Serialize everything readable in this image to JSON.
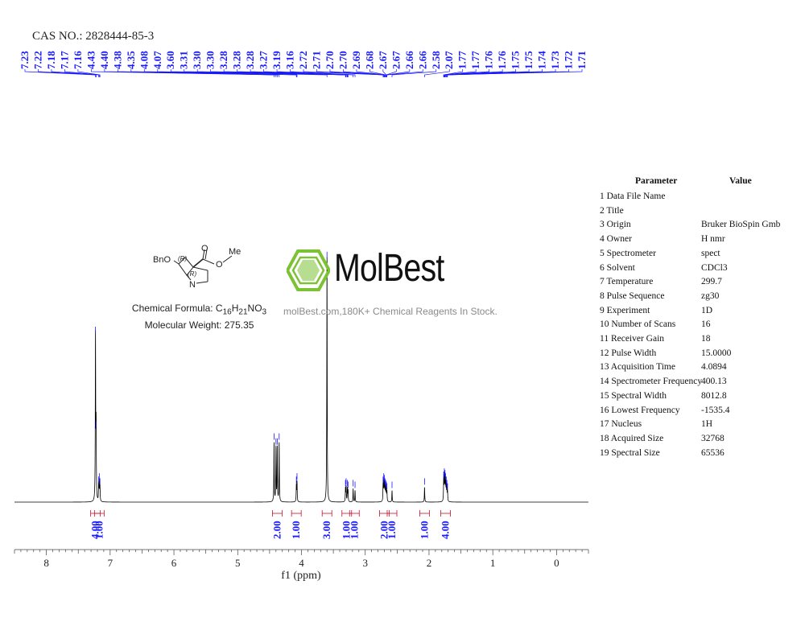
{
  "cas_label": "CAS NO.: 2828444-85-3",
  "peak_labels": [
    "7.23",
    "7.22",
    "7.18",
    "7.17",
    "7.16",
    "4.43",
    "4.40",
    "4.38",
    "4.35",
    "4.08",
    "4.07",
    "3.60",
    "3.31",
    "3.30",
    "3.30",
    "3.28",
    "3.28",
    "3.28",
    "3.27",
    "3.19",
    "3.16",
    "2.72",
    "2.71",
    "2.70",
    "2.70",
    "2.69",
    "2.68",
    "2.67",
    "2.67",
    "2.66",
    "2.66",
    "2.58",
    "2.07",
    "1.77",
    "1.77",
    "1.76",
    "1.76",
    "1.75",
    "1.75",
    "1.74",
    "1.73",
    "1.72",
    "1.71"
  ],
  "molecule": {
    "substituent_label": "BnO",
    "stereo_label_1": "(R)",
    "stereo_label_2": "(R)",
    "carbonyl_o": "O",
    "ester_o": "O",
    "methyl": "Me",
    "nitrogen": "N",
    "formula_prefix": "Chemical Formula: C",
    "formula_c_sub": "16",
    "formula_h": "H",
    "formula_h_sub": "21",
    "formula_rest": "NO",
    "formula_o_sub": "3",
    "weight_text": "Molecular Weight: 275.35"
  },
  "watermark": {
    "brand": "MolBest",
    "tagline": "molBest.com,180K+ Chemical Reagents In Stock."
  },
  "parameters": {
    "header_param": "Parameter",
    "header_value": "Value",
    "rows": [
      {
        "n": "1",
        "name": "Data File Name",
        "value": ""
      },
      {
        "n": "2",
        "name": "Title",
        "value": ""
      },
      {
        "n": "3",
        "name": "Origin",
        "value": "Bruker BioSpin Gmb"
      },
      {
        "n": "4",
        "name": "Owner",
        "value": "H nmr"
      },
      {
        "n": "5",
        "name": "Spectrometer",
        "value": "spect"
      },
      {
        "n": "6",
        "name": "Solvent",
        "value": "CDCl3"
      },
      {
        "n": "7",
        "name": "Temperature",
        "value": "299.7"
      },
      {
        "n": "8",
        "name": "Pulse Sequence",
        "value": "zg30"
      },
      {
        "n": "9",
        "name": "Experiment",
        "value": "1D"
      },
      {
        "n": "10",
        "name": "Number of Scans",
        "value": "16"
      },
      {
        "n": "11",
        "name": "Receiver Gain",
        "value": "18"
      },
      {
        "n": "12",
        "name": "Pulse Width",
        "value": "15.0000"
      },
      {
        "n": "13",
        "name": "Acquisition Time",
        "value": "4.0894"
      },
      {
        "n": "14",
        "name": "Spectrometer Frequency",
        "value": "400.13"
      },
      {
        "n": "15",
        "name": "Spectral Width",
        "value": "8012.8"
      },
      {
        "n": "16",
        "name": "Lowest Frequency",
        "value": "-1535.4"
      },
      {
        "n": "17",
        "name": "Nucleus",
        "value": "1H"
      },
      {
        "n": "18",
        "name": "Acquired Size",
        "value": "32768"
      },
      {
        "n": "19",
        "name": "Spectral Size",
        "value": "65536"
      }
    ]
  },
  "chart_data": {
    "type": "line",
    "xlabel": "f1 (ppm)",
    "xlim": [
      8.5,
      -0.5
    ],
    "x_reversed": true,
    "xticks": [
      8,
      7,
      6,
      5,
      4,
      3,
      2,
      1,
      0
    ],
    "peaks": [
      {
        "ppm": 7.23,
        "height": 1.0
      },
      {
        "ppm": 7.22,
        "height": 0.43
      },
      {
        "ppm": 7.18,
        "height": 0.1
      },
      {
        "ppm": 7.17,
        "height": 0.12
      },
      {
        "ppm": 7.16,
        "height": 0.09
      },
      {
        "ppm": 4.43,
        "height": 0.36
      },
      {
        "ppm": 4.4,
        "height": 0.33
      },
      {
        "ppm": 4.38,
        "height": 0.33
      },
      {
        "ppm": 4.35,
        "height": 0.36
      },
      {
        "ppm": 4.08,
        "height": 0.1
      },
      {
        "ppm": 4.07,
        "height": 0.12
      },
      {
        "ppm": 3.6,
        "height": 1.5
      },
      {
        "ppm": 3.31,
        "height": 0.08
      },
      {
        "ppm": 3.3,
        "height": 0.09
      },
      {
        "ppm": 3.28,
        "height": 0.08
      },
      {
        "ppm": 3.27,
        "height": 0.07
      },
      {
        "ppm": 3.19,
        "height": 0.08
      },
      {
        "ppm": 3.16,
        "height": 0.07
      },
      {
        "ppm": 2.72,
        "height": 0.1
      },
      {
        "ppm": 2.71,
        "height": 0.12
      },
      {
        "ppm": 2.7,
        "height": 0.11
      },
      {
        "ppm": 2.69,
        "height": 0.09
      },
      {
        "ppm": 2.68,
        "height": 0.08
      },
      {
        "ppm": 2.67,
        "height": 0.07
      },
      {
        "ppm": 2.66,
        "height": 0.06
      },
      {
        "ppm": 2.58,
        "height": 0.07
      },
      {
        "ppm": 2.07,
        "height": 0.09
      },
      {
        "ppm": 1.77,
        "height": 0.13
      },
      {
        "ppm": 1.76,
        "height": 0.15
      },
      {
        "ppm": 1.75,
        "height": 0.14
      },
      {
        "ppm": 1.74,
        "height": 0.12
      },
      {
        "ppm": 1.73,
        "height": 0.1
      },
      {
        "ppm": 1.72,
        "height": 0.08
      },
      {
        "ppm": 1.71,
        "height": 0.06
      }
    ],
    "integrals": [
      {
        "ppm": 7.23,
        "value": "4.00"
      },
      {
        "ppm": 7.17,
        "value": "1.00"
      },
      {
        "ppm": 4.38,
        "value": "2.00"
      },
      {
        "ppm": 4.08,
        "value": "1.00"
      },
      {
        "ppm": 3.6,
        "value": "3.00"
      },
      {
        "ppm": 3.29,
        "value": "1.00"
      },
      {
        "ppm": 3.17,
        "value": "1.00"
      },
      {
        "ppm": 2.7,
        "value": "2.00"
      },
      {
        "ppm": 2.58,
        "value": "1.00"
      },
      {
        "ppm": 2.07,
        "value": "1.00"
      },
      {
        "ppm": 1.74,
        "value": "4.00"
      }
    ],
    "line_color": "#000000",
    "label_color": "#1a1aff",
    "integral_color": "#c8102e"
  }
}
